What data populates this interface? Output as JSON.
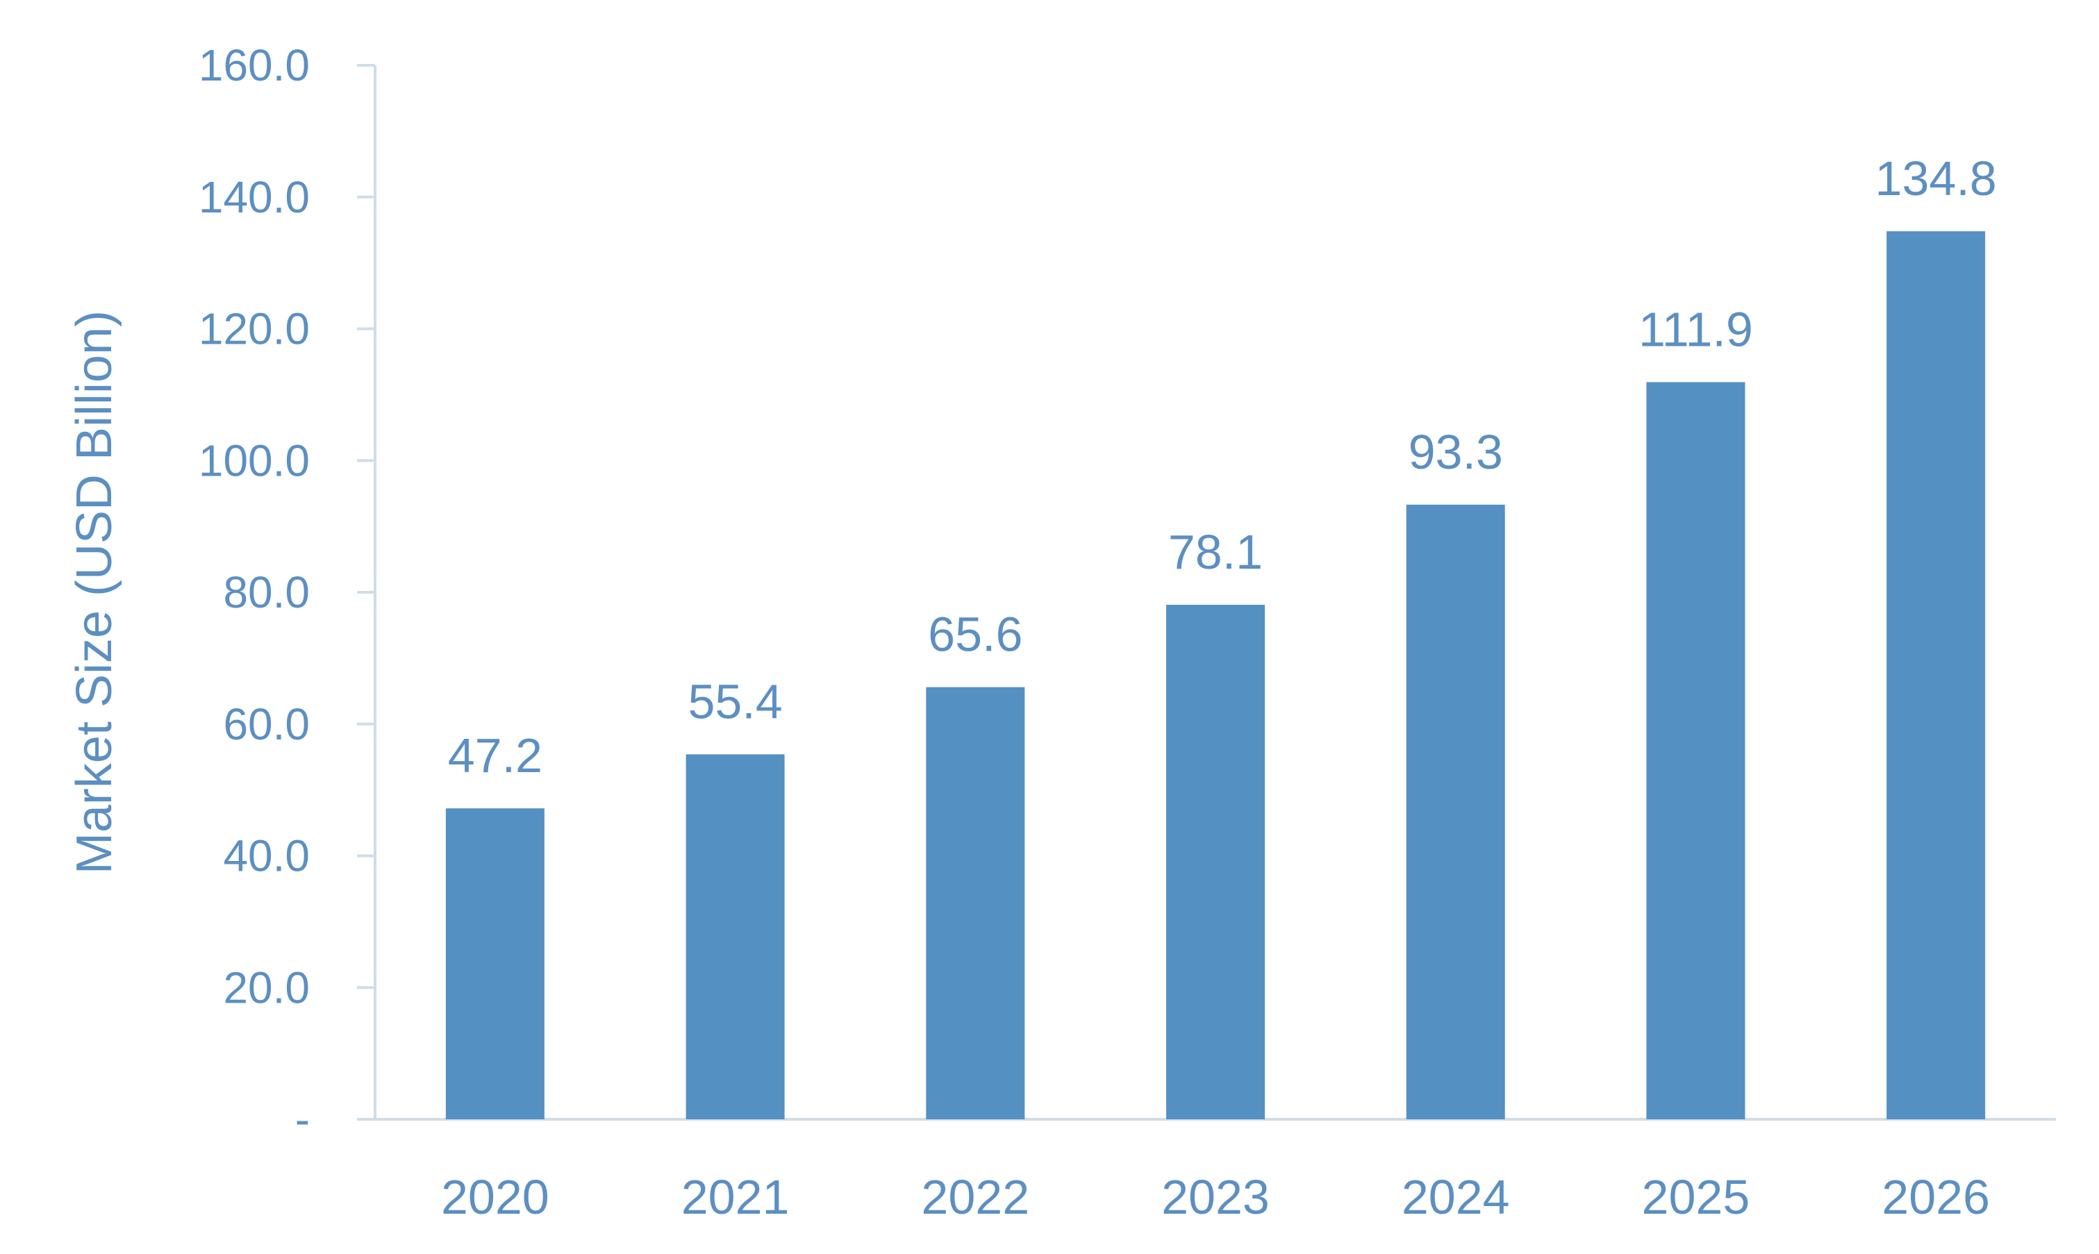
{
  "chart_data": {
    "type": "bar",
    "categories": [
      "2020",
      "2021",
      "2022",
      "2023",
      "2024",
      "2025",
      "2026"
    ],
    "values": [
      47.2,
      55.4,
      65.6,
      78.1,
      93.3,
      111.9,
      134.8
    ],
    "data_labels": [
      "47.2",
      "55.4",
      "65.6",
      "78.1",
      "93.3",
      "111.9",
      "134.8"
    ],
    "title": "",
    "xlabel": "",
    "ylabel": "Market Size (USD Billion)",
    "ylim": [
      0,
      160
    ],
    "yticks": [
      0,
      20,
      40,
      60,
      80,
      100,
      120,
      140,
      160
    ],
    "ytick_labels": [
      "-",
      "20.0",
      "40.0",
      "60.0",
      "80.0",
      "100.0",
      "120.0",
      "140.0",
      "160.0"
    ],
    "grid": false,
    "legend": "none",
    "colors": {
      "bar": "#5590c3",
      "text": "#5c8fc2",
      "axis": "#cfdde9"
    }
  }
}
